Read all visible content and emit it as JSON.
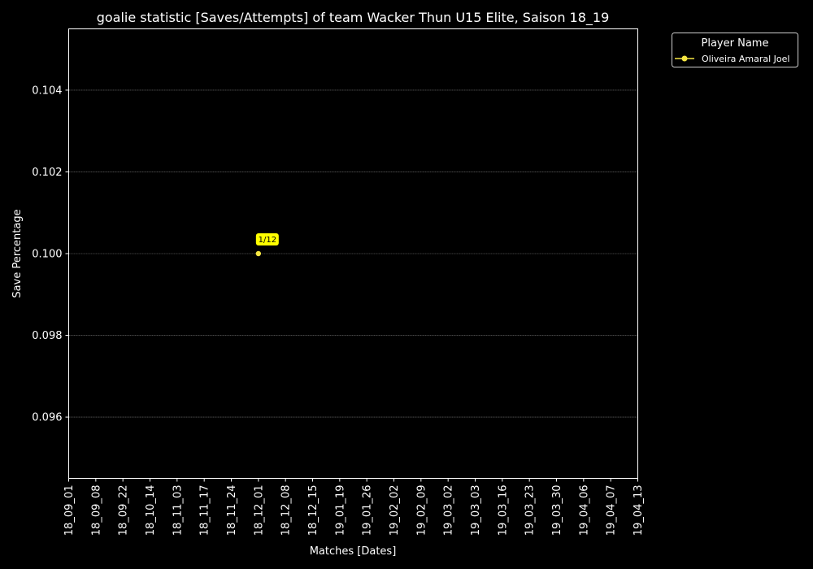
{
  "chart_data": {
    "type": "line",
    "title": "goalie statistic [Saves/Attempts] of team Wacker Thun U15 Elite, Saison 18_19",
    "xlabel": "Matches [Dates]",
    "ylabel": "Save Percentage",
    "categories": [
      "18_09_01",
      "18_09_08",
      "18_09_22",
      "18_10_14",
      "18_11_03",
      "18_11_17",
      "18_11_24",
      "18_12_01",
      "18_12_08",
      "18_12_15",
      "19_01_19",
      "19_01_26",
      "19_02_02",
      "19_02_09",
      "19_03_02",
      "19_03_03",
      "19_03_16",
      "19_03_23",
      "19_03_30",
      "19_04_06",
      "19_04_07",
      "19_04_13"
    ],
    "ylim": [
      0.0945,
      0.1055
    ],
    "yticks": [
      "0.096",
      "0.098",
      "0.100",
      "0.102",
      "0.104"
    ],
    "grid": true,
    "legend": {
      "title": "Player Name",
      "placement": "outside-top-right"
    },
    "series": [
      {
        "name": "Oliveira Amaral Joel",
        "color": "#f5e642",
        "points": [
          {
            "x": "18_12_01",
            "y": 0.1,
            "label": "1/12"
          }
        ]
      }
    ]
  },
  "colors": {
    "background": "#000000",
    "foreground": "#ffffff",
    "grid": "#666666",
    "annotation_box": "#ffff00",
    "series": "#f5e642"
  }
}
